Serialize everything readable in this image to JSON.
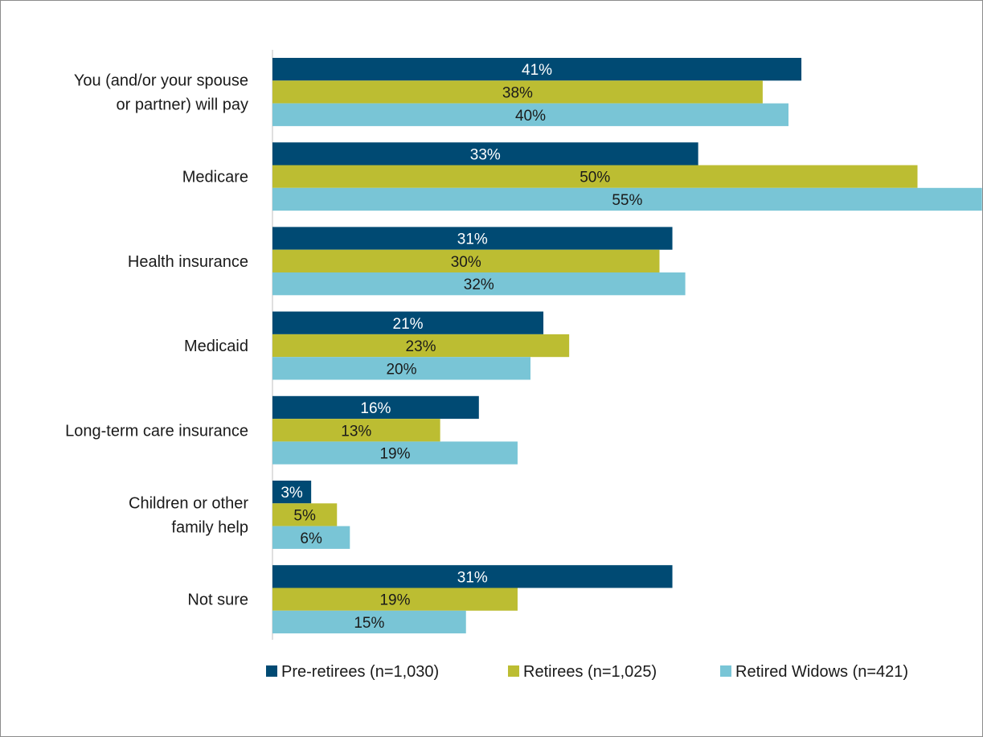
{
  "chart_data": {
    "type": "bar",
    "orientation": "horizontal",
    "title": "",
    "xlabel": "",
    "ylabel": "",
    "xlim": [
      0,
      55
    ],
    "grid": false,
    "legend_position": "bottom",
    "categories": [
      [
        "You (and/or your spouse",
        "or partner) will pay"
      ],
      [
        "Medicare"
      ],
      [
        "Health insurance"
      ],
      [
        "Medicaid"
      ],
      [
        "Long-term care insurance"
      ],
      [
        "Children or other",
        "family help"
      ],
      [
        "Not sure"
      ]
    ],
    "series": [
      {
        "name": "Pre-retirees (n=1,030)",
        "color": "#004a73",
        "label_color": "#ffffff",
        "values": [
          41,
          33,
          31,
          21,
          16,
          3,
          31
        ]
      },
      {
        "name": "Retirees (n=1,025)",
        "color": "#bcbd32",
        "label_color": "#1a1a1a",
        "values": [
          38,
          50,
          30,
          23,
          13,
          5,
          19
        ]
      },
      {
        "name": "Retired Widows (n=421)",
        "color": "#79c5d6",
        "label_color": "#1a1a1a",
        "values": [
          40,
          55,
          32,
          20,
          19,
          6,
          15
        ]
      }
    ],
    "value_suffix": "%"
  }
}
